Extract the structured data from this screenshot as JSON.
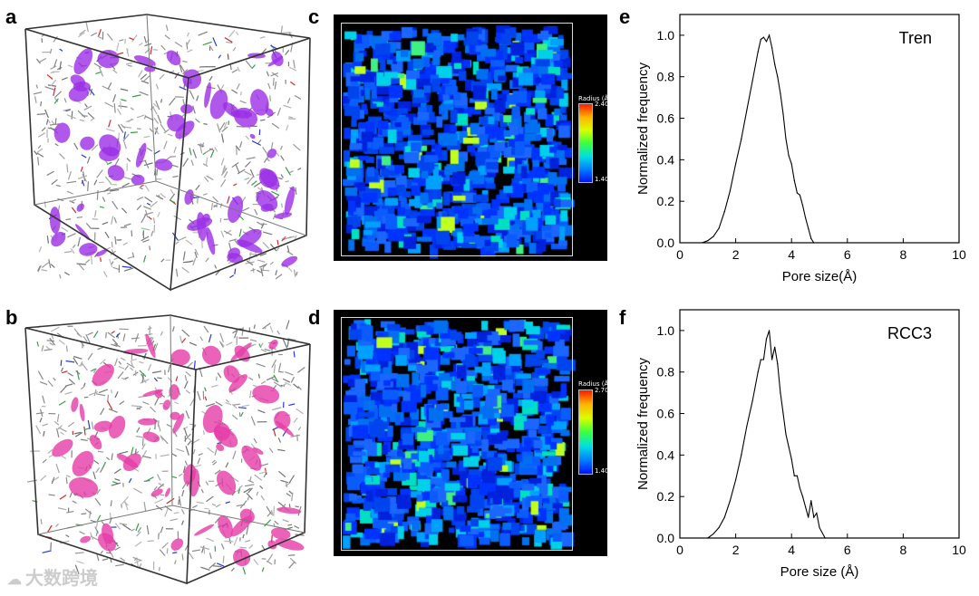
{
  "panels": {
    "a": "a",
    "b": "b",
    "c": "c",
    "d": "d",
    "e": "e",
    "f": "f"
  },
  "pore_maps": {
    "c": {
      "colorbar_title": "Radius (Å)",
      "max_label": "2.40",
      "min_label": "1.40"
    },
    "d": {
      "colorbar_title": "Radius (Å)",
      "max_label": "2.70",
      "min_label": "1.40"
    }
  },
  "cube_colors": {
    "a": "#9b2ee6",
    "b": "#e63ca8"
  },
  "chart_data": [
    {
      "type": "line",
      "panel": "e",
      "title": "Tren",
      "xlabel": "Pore size(Å)",
      "ylabel": "Normalized frequency",
      "xlim": [
        0,
        10
      ],
      "ylim": [
        0,
        1.1
      ],
      "xticks": [
        "0",
        "2",
        "4",
        "6",
        "8",
        "10"
      ],
      "yticks": [
        "0.0",
        "0.2",
        "0.4",
        "0.6",
        "0.8",
        "1.0"
      ],
      "x": [
        0.8,
        1.0,
        1.2,
        1.4,
        1.6,
        1.8,
        2.0,
        2.2,
        2.4,
        2.6,
        2.8,
        2.9,
        3.0,
        3.1,
        3.2,
        3.3,
        3.4,
        3.5,
        3.6,
        3.7,
        3.8,
        3.9,
        4.0,
        4.1,
        4.2,
        4.3,
        4.4,
        4.5,
        4.6,
        4.7,
        4.8
      ],
      "y": [
        0,
        0.01,
        0.03,
        0.07,
        0.15,
        0.25,
        0.38,
        0.5,
        0.64,
        0.78,
        0.92,
        0.98,
        0.99,
        0.97,
        1.0,
        0.94,
        0.86,
        0.8,
        0.72,
        0.62,
        0.5,
        0.42,
        0.38,
        0.3,
        0.24,
        0.23,
        0.18,
        0.12,
        0.07,
        0.02,
        0
      ]
    },
    {
      "type": "line",
      "panel": "f",
      "title": "RCC3",
      "xlabel": "Pore size (Å)",
      "ylabel": "Normalized frequency",
      "xlim": [
        0,
        10
      ],
      "ylim": [
        0,
        1.1
      ],
      "xticks": [
        "0",
        "2",
        "4",
        "6",
        "8",
        "10"
      ],
      "yticks": [
        "0.0",
        "0.2",
        "0.4",
        "0.6",
        "0.8",
        "1.0"
      ],
      "x": [
        1.0,
        1.2,
        1.4,
        1.6,
        1.8,
        2.0,
        2.2,
        2.4,
        2.6,
        2.8,
        2.9,
        3.0,
        3.1,
        3.2,
        3.3,
        3.4,
        3.5,
        3.6,
        3.7,
        3.8,
        3.9,
        4.0,
        4.1,
        4.2,
        4.3,
        4.4,
        4.5,
        4.6,
        4.7,
        4.8,
        4.9,
        5.0,
        5.2
      ],
      "y": [
        0,
        0.02,
        0.05,
        0.1,
        0.18,
        0.28,
        0.4,
        0.54,
        0.66,
        0.8,
        0.86,
        0.86,
        0.96,
        1.0,
        0.86,
        0.92,
        0.84,
        0.7,
        0.6,
        0.5,
        0.44,
        0.38,
        0.3,
        0.3,
        0.24,
        0.2,
        0.15,
        0.1,
        0.18,
        0.1,
        0.12,
        0.05,
        0
      ]
    }
  ],
  "watermark": {
    "icon": "cloud-icon",
    "text": "大数跨境"
  }
}
